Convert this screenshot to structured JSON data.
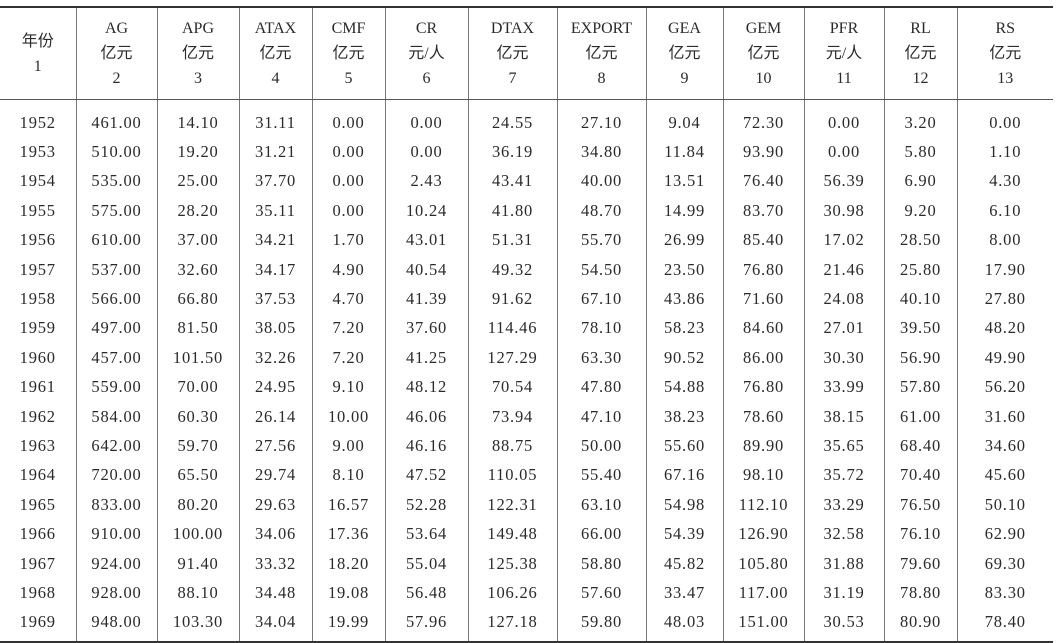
{
  "columns": [
    {
      "name": "年份",
      "unit": "",
      "index": "1"
    },
    {
      "name": "AG",
      "unit": "亿元",
      "index": "2"
    },
    {
      "name": "APG",
      "unit": "亿元",
      "index": "3"
    },
    {
      "name": "ATAX",
      "unit": "亿元",
      "index": "4"
    },
    {
      "name": "CMF",
      "unit": "亿元",
      "index": "5"
    },
    {
      "name": "CR",
      "unit": "元/人",
      "index": "6"
    },
    {
      "name": "DTAX",
      "unit": "亿元",
      "index": "7"
    },
    {
      "name": "EXPORT",
      "unit": "亿元",
      "index": "8"
    },
    {
      "name": "GEA",
      "unit": "亿元",
      "index": "9"
    },
    {
      "name": "GEM",
      "unit": "亿元",
      "index": "10"
    },
    {
      "name": "PFR",
      "unit": "元/人",
      "index": "11"
    },
    {
      "name": "RL",
      "unit": "亿元",
      "index": "12"
    },
    {
      "name": "RS",
      "unit": "亿元",
      "index": "13"
    }
  ],
  "rows": [
    [
      "1952",
      "461.00",
      "14.10",
      "31.11",
      "0.00",
      "0.00",
      "24.55",
      "27.10",
      "9.04",
      "72.30",
      "0.00",
      "3.20",
      "0.00"
    ],
    [
      "1953",
      "510.00",
      "19.20",
      "31.21",
      "0.00",
      "0.00",
      "36.19",
      "34.80",
      "11.84",
      "93.90",
      "0.00",
      "5.80",
      "1.10"
    ],
    [
      "1954",
      "535.00",
      "25.00",
      "37.70",
      "0.00",
      "2.43",
      "43.41",
      "40.00",
      "13.51",
      "76.40",
      "56.39",
      "6.90",
      "4.30"
    ],
    [
      "1955",
      "575.00",
      "28.20",
      "35.11",
      "0.00",
      "10.24",
      "41.80",
      "48.70",
      "14.99",
      "83.70",
      "30.98",
      "9.20",
      "6.10"
    ],
    [
      "1956",
      "610.00",
      "37.00",
      "34.21",
      "1.70",
      "43.01",
      "51.31",
      "55.70",
      "26.99",
      "85.40",
      "17.02",
      "28.50",
      "8.00"
    ],
    [
      "1957",
      "537.00",
      "32.60",
      "34.17",
      "4.90",
      "40.54",
      "49.32",
      "54.50",
      "23.50",
      "76.80",
      "21.46",
      "25.80",
      "17.90"
    ],
    [
      "1958",
      "566.00",
      "66.80",
      "37.53",
      "4.70",
      "41.39",
      "91.62",
      "67.10",
      "43.86",
      "71.60",
      "24.08",
      "40.10",
      "27.80"
    ],
    [
      "1959",
      "497.00",
      "81.50",
      "38.05",
      "7.20",
      "37.60",
      "114.46",
      "78.10",
      "58.23",
      "84.60",
      "27.01",
      "39.50",
      "48.20"
    ],
    [
      "1960",
      "457.00",
      "101.50",
      "32.26",
      "7.20",
      "41.25",
      "127.29",
      "63.30",
      "90.52",
      "86.00",
      "30.30",
      "56.90",
      "49.90"
    ],
    [
      "1961",
      "559.00",
      "70.00",
      "24.95",
      "9.10",
      "48.12",
      "70.54",
      "47.80",
      "54.88",
      "76.80",
      "33.99",
      "57.80",
      "56.20"
    ],
    [
      "1962",
      "584.00",
      "60.30",
      "26.14",
      "10.00",
      "46.06",
      "73.94",
      "47.10",
      "38.23",
      "78.60",
      "38.15",
      "61.00",
      "31.60"
    ],
    [
      "1963",
      "642.00",
      "59.70",
      "27.56",
      "9.00",
      "46.16",
      "88.75",
      "50.00",
      "55.60",
      "89.90",
      "35.65",
      "68.40",
      "34.60"
    ],
    [
      "1964",
      "720.00",
      "65.50",
      "29.74",
      "8.10",
      "47.52",
      "110.05",
      "55.40",
      "67.16",
      "98.10",
      "35.72",
      "70.40",
      "45.60"
    ],
    [
      "1965",
      "833.00",
      "80.20",
      "29.63",
      "16.57",
      "52.28",
      "122.31",
      "63.10",
      "54.98",
      "112.10",
      "33.29",
      "76.50",
      "50.10"
    ],
    [
      "1966",
      "910.00",
      "100.00",
      "34.06",
      "17.36",
      "53.64",
      "149.48",
      "66.00",
      "54.39",
      "126.90",
      "32.58",
      "76.10",
      "62.90"
    ],
    [
      "1967",
      "924.00",
      "91.40",
      "33.32",
      "18.20",
      "55.04",
      "125.38",
      "58.80",
      "45.82",
      "105.80",
      "31.88",
      "79.60",
      "69.30"
    ],
    [
      "1968",
      "928.00",
      "88.10",
      "34.48",
      "19.08",
      "56.48",
      "106.26",
      "57.60",
      "33.47",
      "117.00",
      "31.19",
      "78.80",
      "83.30"
    ],
    [
      "1969",
      "948.00",
      "103.30",
      "34.04",
      "19.99",
      "57.96",
      "127.18",
      "59.80",
      "48.03",
      "151.00",
      "30.53",
      "80.90",
      "78.40"
    ]
  ]
}
